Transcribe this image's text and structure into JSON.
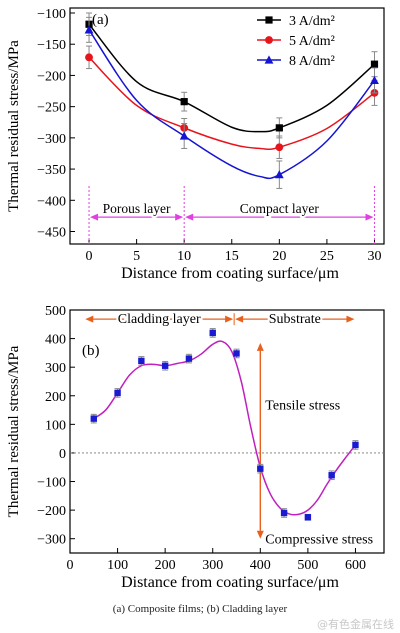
{
  "caption": "(a) Composite films; (b) Cladding layer",
  "watermark": "@有色金属在线",
  "chart_data": [
    {
      "type": "line",
      "panel_label": "(a)",
      "xlabel": "Distance from coating surface/μm",
      "ylabel": "Thermal residual stress/MPa",
      "xlim": [
        -2,
        31
      ],
      "ylim": [
        -470,
        -92
      ],
      "xticks": [
        0,
        5,
        10,
        15,
        20,
        25,
        30
      ],
      "yticks": [
        -100,
        -150,
        -200,
        -250,
        -300,
        -350,
        -400,
        -450
      ],
      "legend_position": "top-right",
      "x": [
        0,
        10,
        20,
        30
      ],
      "series": [
        {
          "name": "3 A/dm²",
          "color": "#000000",
          "marker": "square",
          "values": [
            -118,
            -242,
            -284,
            -182
          ],
          "errors": [
            18,
            15,
            16,
            20
          ],
          "curve": [
            [
              0,
              -118
            ],
            [
              5,
              -210
            ],
            [
              10,
              -242
            ],
            [
              15,
              -283
            ],
            [
              18,
              -290
            ],
            [
              20,
              -284
            ],
            [
              25,
              -248
            ],
            [
              30,
              -182
            ]
          ]
        },
        {
          "name": "5 A/dm²",
          "color": "#e8141c",
          "marker": "circle",
          "values": [
            -171,
            -284,
            -315,
            -228
          ],
          "errors": [
            18,
            15,
            18,
            20
          ],
          "curve": [
            [
              0,
              -171
            ],
            [
              5,
              -248
            ],
            [
              10,
              -284
            ],
            [
              15,
              -310
            ],
            [
              18,
              -317
            ],
            [
              20,
              -315
            ],
            [
              25,
              -285
            ],
            [
              30,
              -228
            ]
          ]
        },
        {
          "name": "8 A/dm²",
          "color": "#1414d2",
          "marker": "triangle",
          "values": [
            -127,
            -297,
            -359,
            -208
          ],
          "errors": [
            20,
            20,
            22,
            20
          ],
          "curve": [
            [
              0,
              -127
            ],
            [
              5,
              -240
            ],
            [
              10,
              -297
            ],
            [
              15,
              -345
            ],
            [
              18,
              -362
            ],
            [
              20,
              -359
            ],
            [
              25,
              -305
            ],
            [
              30,
              -208
            ]
          ]
        }
      ],
      "regions": [
        {
          "label": "Porous layer",
          "from": 0,
          "to": 10,
          "color": "#e040e0"
        },
        {
          "label": "Compact layer",
          "from": 10,
          "to": 30,
          "color": "#e040e0"
        }
      ]
    },
    {
      "type": "scatter",
      "panel_label": "(b)",
      "xlabel": "Distance from coating surface/μm",
      "ylabel": "Thermal residual stress/MPa",
      "xlim": [
        0,
        660
      ],
      "ylim": [
        -350,
        500
      ],
      "xticks": [
        0,
        100,
        200,
        300,
        400,
        500,
        600
      ],
      "yticks": [
        500,
        400,
        300,
        200,
        100,
        0,
        -100,
        -200,
        -300
      ],
      "x": [
        50,
        100,
        150,
        200,
        250,
        300,
        350,
        400,
        450,
        500,
        550,
        600
      ],
      "series": [
        {
          "name": "",
          "color": "#1a1ad2",
          "fit_color": "#c020c0",
          "values": [
            120,
            210,
            322,
            305,
            330,
            420,
            348,
            -55,
            -210,
            -225,
            -78,
            28
          ],
          "errors": [
            15,
            15,
            15,
            15,
            15,
            15,
            15,
            15,
            15,
            10,
            15,
            15
          ],
          "curve": [
            [
              50,
              120
            ],
            [
              75,
              150
            ],
            [
              100,
              210
            ],
            [
              125,
              272
            ],
            [
              150,
              305
            ],
            [
              175,
              310
            ],
            [
              200,
              305
            ],
            [
              225,
              313
            ],
            [
              250,
              322
            ],
            [
              275,
              345
            ],
            [
              300,
              380
            ],
            [
              320,
              390
            ],
            [
              340,
              355
            ],
            [
              360,
              250
            ],
            [
              380,
              90
            ],
            [
              400,
              -50
            ],
            [
              420,
              -140
            ],
            [
              440,
              -190
            ],
            [
              460,
              -213
            ],
            [
              480,
              -215
            ],
            [
              500,
              -200
            ],
            [
              520,
              -165
            ],
            [
              540,
              -110
            ],
            [
              560,
              -60
            ],
            [
              580,
              -15
            ],
            [
              600,
              28
            ]
          ]
        }
      ],
      "regions": [
        {
          "label": "Cladding layer",
          "from": 30,
          "to": 345,
          "color": "#e8601c"
        },
        {
          "label": "Substrate",
          "from": 345,
          "to": 600,
          "color": "#e8601c"
        }
      ],
      "annotations": {
        "upper": "Tensile stress",
        "lower": "Compressive stress",
        "arrow_x": 400,
        "zero_line": 0
      }
    }
  ]
}
